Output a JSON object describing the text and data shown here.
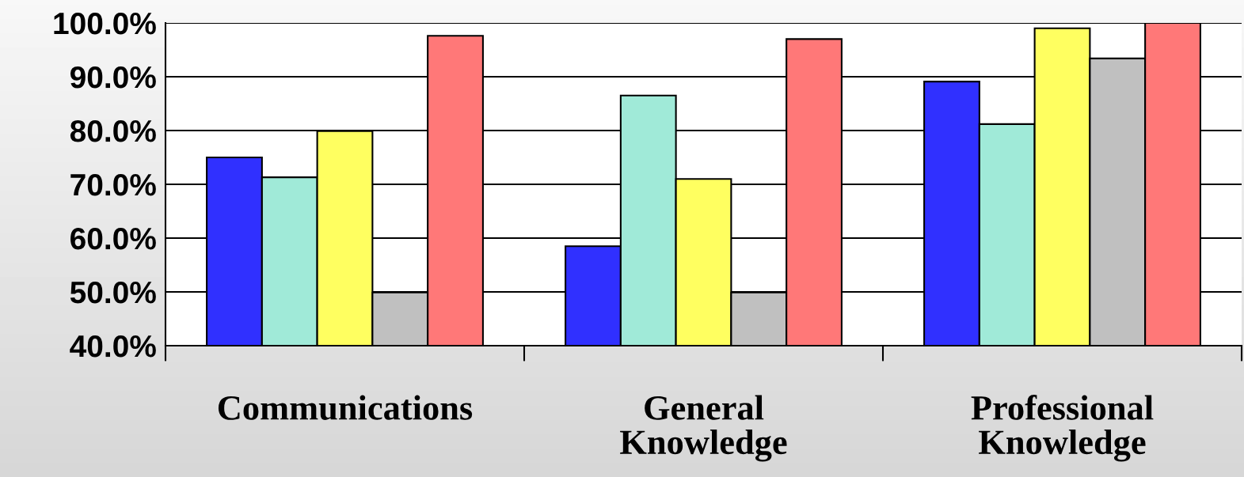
{
  "chart_data": {
    "type": "bar",
    "categories": [
      "Communications",
      "General\nKnowledge",
      "Professional\nKnowledge"
    ],
    "series": [
      {
        "color": "#3030ff",
        "values": [
          75.0,
          58.5,
          89.1
        ]
      },
      {
        "color": "#a0ead8",
        "values": [
          71.3,
          86.5,
          81.2
        ]
      },
      {
        "color": "#ffff60",
        "values": [
          79.9,
          71.0,
          99.0
        ]
      },
      {
        "color": "#c0c0c0",
        "values": [
          49.9,
          49.9,
          93.4
        ]
      },
      {
        "color": "#ff7878",
        "values": [
          97.6,
          97.0,
          100.0
        ]
      }
    ],
    "ylim": [
      40,
      100
    ],
    "yticks": [
      {
        "value": 40,
        "label": "40.0%"
      },
      {
        "value": 50,
        "label": "50.0%"
      },
      {
        "value": 60,
        "label": "60.0%"
      },
      {
        "value": 70,
        "label": "70.0%"
      },
      {
        "value": 80,
        "label": "80.0%"
      },
      {
        "value": 90,
        "label": "90.0%"
      },
      {
        "value": 100,
        "label": "100.0%"
      }
    ],
    "grid": "y",
    "legend": false
  }
}
